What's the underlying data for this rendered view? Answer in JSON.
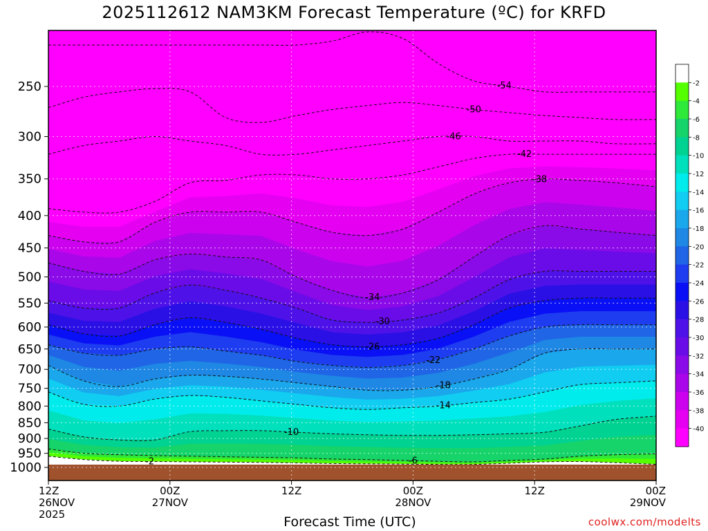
{
  "chart_data": {
    "type": "heatmap",
    "title": "2025112612 NAM3KM Forecast Temperature (ºC) for KRFD",
    "xlabel": "Forecast Time (UTC)",
    "ylabel": "",
    "credit": "coolwx.com/modelts",
    "x_ticks": [
      {
        "hour": 0,
        "lines": [
          "12Z",
          "26NOV",
          "2025"
        ]
      },
      {
        "hour": 12,
        "lines": [
          "00Z",
          "27NOV"
        ]
      },
      {
        "hour": 24,
        "lines": [
          "12Z"
        ]
      },
      {
        "hour": 36,
        "lines": [
          "00Z",
          "28NOV"
        ]
      },
      {
        "hour": 48,
        "lines": [
          "12Z"
        ]
      },
      {
        "hour": 60,
        "lines": [
          "00Z",
          "29NOV"
        ]
      }
    ],
    "x_range_hours": [
      0,
      60
    ],
    "y_ticks": [
      250,
      300,
      350,
      400,
      450,
      500,
      550,
      600,
      650,
      700,
      750,
      800,
      850,
      900,
      950,
      1000
    ],
    "y_range_hPa": [
      1040,
      200
    ],
    "y_axis": "pressure (hPa), log scale, decreasing upward",
    "colorbar": {
      "labels": [
        -2,
        -4,
        -6,
        -8,
        -10,
        -12,
        -14,
        -16,
        -18,
        -20,
        -22,
        -24,
        -26,
        -28,
        -30,
        -32,
        -34,
        -36,
        -38,
        -40
      ],
      "colors": [
        "#ffffff",
        "#55ff00",
        "#2ee83a",
        "#16d36a",
        "#00d291",
        "#00e0bd",
        "#00ecec",
        "#11cdf2",
        "#1aa7ec",
        "#1f87e4",
        "#1f65e6",
        "#1e3df0",
        "#0a10f5",
        "#2b10e6",
        "#4e12e8",
        "#6a0ce8",
        "#8a0ae8",
        "#aa06ea",
        "#cc02ee",
        "#e600f2",
        "#ff00ff"
      ]
    },
    "ground_color": "#a0522d",
    "ground_level_hPa": 990,
    "isotherm_labels": [
      -54,
      -50,
      -46,
      -42,
      -38,
      -34,
      -30,
      -26,
      -22,
      -18,
      -14,
      -10,
      -6,
      -2
    ],
    "level_profiles": [
      {
        "temp": -2,
        "p": [
          960,
          972,
          978,
          979,
          980,
          981,
          982,
          984,
          986,
          987,
          988,
          989,
          989,
          985,
          980,
          979,
          983,
          989
        ]
      },
      {
        "temp": -6,
        "p": [
          935,
          950,
          955,
          958,
          960,
          962,
          964,
          966,
          970,
          972,
          975,
          978,
          980,
          975,
          970,
          960,
          955,
          952
        ]
      },
      {
        "temp": -10,
        "p": [
          870,
          895,
          905,
          905,
          878,
          875,
          875,
          880,
          885,
          888,
          890,
          890,
          888,
          885,
          880,
          860,
          840,
          830
        ]
      },
      {
        "temp": -14,
        "p": [
          760,
          795,
          800,
          780,
          770,
          775,
          785,
          795,
          805,
          810,
          805,
          800,
          790,
          780,
          760,
          740,
          735,
          730
        ]
      },
      {
        "temp": -18,
        "p": [
          690,
          730,
          745,
          725,
          715,
          718,
          725,
          735,
          745,
          755,
          755,
          745,
          725,
          700,
          660,
          650,
          650,
          650
        ]
      },
      {
        "temp": -22,
        "p": [
          640,
          660,
          665,
          650,
          645,
          655,
          665,
          680,
          690,
          695,
          690,
          675,
          650,
          620,
          600,
          595,
          595,
          595
        ]
      },
      {
        "temp": -26,
        "p": [
          595,
          615,
          620,
          595,
          580,
          590,
          605,
          625,
          640,
          645,
          640,
          625,
          595,
          560,
          545,
          540,
          540,
          540
        ]
      },
      {
        "temp": -30,
        "p": [
          545,
          560,
          560,
          530,
          515,
          525,
          540,
          560,
          585,
          590,
          585,
          570,
          540,
          505,
          490,
          490,
          490,
          490
        ]
      },
      {
        "temp": -34,
        "p": [
          475,
          490,
          495,
          470,
          460,
          465,
          470,
          500,
          525,
          540,
          530,
          505,
          465,
          430,
          415,
          420,
          425,
          430
        ]
      },
      {
        "temp": -38,
        "p": [
          430,
          440,
          440,
          410,
          395,
          395,
          395,
          410,
          425,
          430,
          420,
          395,
          370,
          355,
          350,
          352,
          355,
          360
        ]
      },
      {
        "temp": -42,
        "p": [
          390,
          395,
          395,
          380,
          355,
          352,
          345,
          345,
          350,
          350,
          345,
          335,
          325,
          320,
          320,
          320,
          320,
          320
        ]
      },
      {
        "temp": -46,
        "p": [
          320,
          310,
          305,
          300,
          305,
          310,
          320,
          320,
          315,
          310,
          305,
          300,
          300,
          305,
          305,
          305,
          308,
          308
        ]
      },
      {
        "temp": -50,
        "p": [
          270,
          260,
          255,
          252,
          255,
          280,
          285,
          278,
          272,
          268,
          265,
          268,
          272,
          275,
          278,
          280,
          282,
          282
        ]
      },
      {
        "temp": -54,
        "p": [
          215,
          215,
          215,
          215,
          215,
          215,
          215,
          215,
          212,
          205,
          210,
          230,
          245,
          250,
          255,
          255,
          255,
          255
        ]
      }
    ],
    "profile_hours": [
      0,
      3.5,
      7,
      10.5,
      14,
      17.5,
      21,
      24.5,
      28,
      31.5,
      35,
      38.5,
      42,
      45.5,
      49,
      52.5,
      56,
      60
    ],
    "grid": true
  }
}
